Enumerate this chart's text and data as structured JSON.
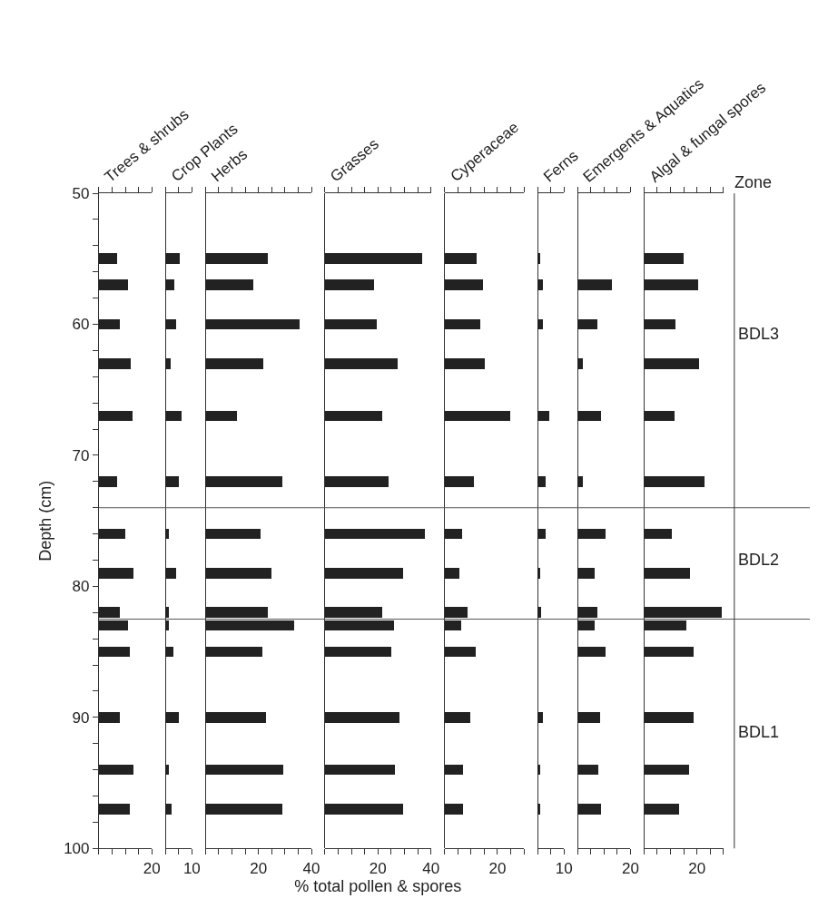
{
  "chart_data": [
    {
      "type": "bar",
      "orientation": "horizontal",
      "title": "Trees & shrubs",
      "ylabel": "Depth (cm)",
      "color": "#222222",
      "x": [
        55,
        57,
        60,
        63,
        67,
        72,
        76,
        79,
        82,
        83,
        85,
        90,
        94,
        97
      ],
      "values": [
        7,
        11,
        8,
        12,
        12.5,
        7,
        10,
        13,
        8,
        11,
        11.5,
        8,
        13,
        11.5
      ],
      "xlim": [
        0,
        20
      ],
      "xticks": [
        {
          "value": 0,
          "label": null
        },
        {
          "value": 5,
          "label": null
        },
        {
          "value": 10,
          "label": null
        },
        {
          "value": 15,
          "label": null
        },
        20
      ],
      "ylim": [
        100,
        50
      ],
      "yticks": [
        50,
        {
          "value": 52,
          "label": null
        },
        {
          "value": 54,
          "label": null
        },
        {
          "value": 56,
          "label": null
        },
        {
          "value": 58,
          "label": null
        },
        60,
        {
          "value": 62,
          "label": null
        },
        {
          "value": 64,
          "label": null
        },
        {
          "value": 66,
          "label": null
        },
        {
          "value": 68,
          "label": null
        },
        70,
        {
          "value": 72,
          "label": null
        },
        {
          "value": 74,
          "label": null
        },
        {
          "value": 76,
          "label": null
        },
        {
          "value": 78,
          "label": null
        },
        80,
        {
          "value": 82,
          "label": null
        },
        {
          "value": 84,
          "label": null
        },
        {
          "value": 86,
          "label": null
        },
        {
          "value": 88,
          "label": null
        },
        90,
        {
          "value": 92,
          "label": null
        },
        {
          "value": 94,
          "label": null
        },
        {
          "value": 96,
          "label": null
        },
        {
          "value": 98,
          "label": null
        },
        100
      ],
      "ref_lines": [
        {
          "axis": "y",
          "value": 74,
          "color": "#555555"
        },
        {
          "axis": "y",
          "value": 82.5,
          "color": "#555555"
        }
      ]
    },
    {
      "type": "bar",
      "orientation": "horizontal",
      "title": "Crop Plants",
      "color": "#222222",
      "x": [
        55,
        57,
        60,
        63,
        67,
        72,
        76,
        79,
        82,
        83,
        85,
        90,
        94,
        97
      ],
      "values": [
        5.5,
        3.5,
        4,
        2,
        6,
        5,
        1.5,
        4,
        1.5,
        1.5,
        3,
        5,
        1.5,
        2.5
      ],
      "xlim": [
        0,
        10
      ],
      "xticks": [
        {
          "value": 0,
          "label": null
        },
        {
          "value": 5,
          "label": null
        },
        10
      ],
      "ylim": [
        100,
        50
      ],
      "tick_labels": "x"
    },
    {
      "type": "bar",
      "orientation": "horizontal",
      "title": "Herbs",
      "color": "#222222",
      "x": [
        55,
        57,
        60,
        63,
        67,
        72,
        76,
        79,
        82,
        83,
        85,
        90,
        94,
        97
      ],
      "values": [
        23.5,
        18,
        35.5,
        22,
        12,
        29,
        21,
        25,
        23.5,
        33.5,
        21.5,
        23,
        29.5,
        29
      ],
      "xlim": [
        0,
        40
      ],
      "xticks": [
        {
          "value": 0,
          "label": null
        },
        {
          "value": 5,
          "label": null
        },
        {
          "value": 10,
          "label": null
        },
        {
          "value": 15,
          "label": null
        },
        20,
        {
          "value": 25,
          "label": null
        },
        {
          "value": 30,
          "label": null
        },
        {
          "value": 35,
          "label": null
        },
        40
      ],
      "ylim": [
        100,
        50
      ],
      "tick_labels": "x"
    },
    {
      "type": "bar",
      "orientation": "horizontal",
      "title": "Grasses",
      "xlabel": "% total pollen & spores",
      "color": "#222222",
      "x": [
        55,
        57,
        60,
        63,
        67,
        72,
        76,
        79,
        82,
        83,
        85,
        90,
        94,
        97
      ],
      "values": [
        36.5,
        18.5,
        19.5,
        27.5,
        21.5,
        24,
        37.5,
        29.5,
        21.5,
        26,
        25,
        28,
        26.5,
        29.5
      ],
      "xlim": [
        0,
        40
      ],
      "xticks": [
        {
          "value": 0,
          "label": null
        },
        {
          "value": 5,
          "label": null
        },
        {
          "value": 10,
          "label": null
        },
        {
          "value": 15,
          "label": null
        },
        20,
        {
          "value": 25,
          "label": null
        },
        {
          "value": 30,
          "label": null
        },
        {
          "value": 35,
          "label": null
        },
        40
      ],
      "ylim": [
        100,
        50
      ],
      "tick_labels": "x"
    },
    {
      "type": "bar",
      "orientation": "horizontal",
      "title": "Cyperaceae",
      "color": "#222222",
      "x": [
        55,
        57,
        60,
        63,
        67,
        72,
        76,
        79,
        82,
        83,
        85,
        90,
        94,
        97
      ],
      "values": [
        12,
        14.5,
        13.5,
        15,
        24.5,
        11,
        6.5,
        5.5,
        8.5,
        6,
        11.5,
        9.5,
        7,
        7
      ],
      "xlim": [
        0,
        30
      ],
      "xticks": [
        {
          "value": 0,
          "label": null
        },
        {
          "value": 5,
          "label": null
        },
        {
          "value": 10,
          "label": null
        },
        {
          "value": 15,
          "label": null
        },
        20,
        {
          "value": 25,
          "label": null
        },
        {
          "value": 30,
          "label": null
        }
      ],
      "ylim": [
        100,
        50
      ],
      "tick_labels": "x"
    },
    {
      "type": "bar",
      "orientation": "horizontal",
      "title": "Ferns",
      "color": "#222222",
      "x": [
        55,
        57,
        60,
        67,
        72,
        76,
        79,
        82,
        90,
        94,
        97
      ],
      "values": [
        1,
        2,
        2,
        4.5,
        3,
        3,
        1,
        1.5,
        2,
        1,
        1
      ],
      "xlim": [
        0,
        10
      ],
      "xticks": [
        {
          "value": 0,
          "label": null
        },
        {
          "value": 5,
          "label": null
        },
        10
      ],
      "ylim": [
        100,
        50
      ],
      "tick_labels": "x"
    },
    {
      "type": "bar",
      "orientation": "horizontal",
      "title": "Emergents & Aquatics",
      "color": "#222222",
      "x": [
        57,
        60,
        63,
        67,
        72,
        76,
        79,
        82,
        83,
        85,
        90,
        94,
        97
      ],
      "values": [
        13,
        7.5,
        2,
        9,
        2,
        10.5,
        6.5,
        7.5,
        6.5,
        10.5,
        8.5,
        8,
        9
      ],
      "xlim": [
        0,
        20
      ],
      "xticks": [
        {
          "value": 0,
          "label": null
        },
        {
          "value": 5,
          "label": null
        },
        {
          "value": 10,
          "label": null
        },
        {
          "value": 15,
          "label": null
        },
        20
      ],
      "ylim": [
        100,
        50
      ],
      "tick_labels": "x"
    },
    {
      "type": "bar",
      "orientation": "horizontal",
      "title": "Algal & fungal spores",
      "color": "#222222",
      "x": [
        55,
        57,
        60,
        63,
        67,
        72,
        76,
        79,
        82,
        83,
        85,
        90,
        94,
        97
      ],
      "values": [
        15,
        20.5,
        12,
        21,
        11.5,
        23,
        10.5,
        17.5,
        29.5,
        16,
        19,
        19,
        17,
        13.5
      ],
      "xlim": [
        0,
        30
      ],
      "xticks": [
        {
          "value": 0,
          "label": null
        },
        {
          "value": 5,
          "label": null
        },
        {
          "value": 10,
          "label": null
        },
        {
          "value": 15,
          "label": null
        },
        20,
        {
          "value": 25,
          "label": null
        },
        {
          "value": 30,
          "label": null
        }
      ],
      "ylim": [
        100,
        50
      ],
      "tick_labels": "x",
      "annotations": [
        "Zone",
        "BDL3",
        "BDL2",
        "BDL1"
      ]
    }
  ]
}
